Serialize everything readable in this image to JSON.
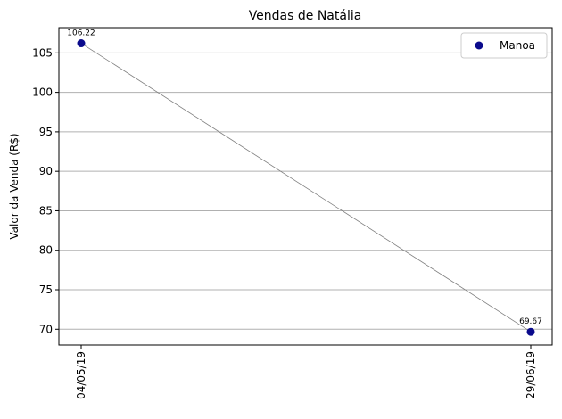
{
  "chart_data": {
    "type": "scatter",
    "title": "Vendas de Natália",
    "xlabel": "",
    "ylabel": "Valor da Venda (R$)",
    "categories": [
      "04/05/19",
      "29/06/19"
    ],
    "series": [
      {
        "name": "Manoa",
        "values": [
          106.22,
          69.67
        ],
        "labels": [
          "106.22",
          "69.67"
        ]
      }
    ],
    "ylim": [
      68,
      108.2
    ],
    "yticks": [
      70,
      75,
      80,
      85,
      90,
      95,
      100,
      105
    ],
    "grid": "horizontal",
    "legend": "top-right",
    "connecting_line": true,
    "colors": {
      "point": "#0a0a8c",
      "line": "#808080",
      "grid": "#b0b0b0"
    }
  }
}
